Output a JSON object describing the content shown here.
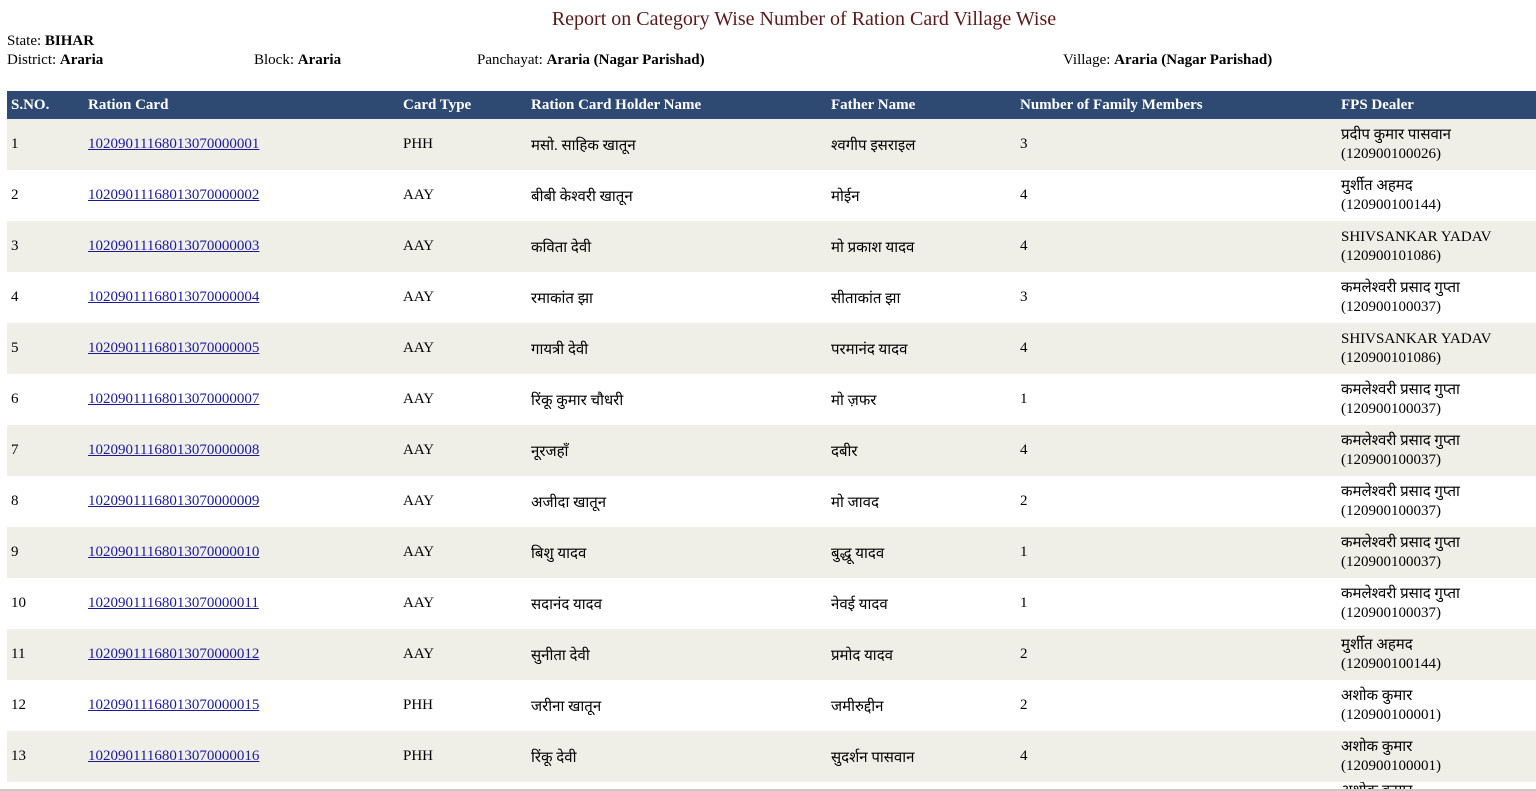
{
  "title": "Report on Category Wise Number of Ration Card Village Wise",
  "meta": {
    "state_label": "State:",
    "state_value": "BIHAR",
    "district_label": "District:",
    "district_value": "Araria",
    "block_label": "Block:",
    "block_value": "Araria",
    "panchayat_label": "Panchayat:",
    "panchayat_value": "Araria (Nagar Parishad)",
    "village_label": "Village:",
    "village_value": "Araria (Nagar Parishad)"
  },
  "table": {
    "headers": [
      "S.NO.",
      "Ration Card",
      "Card Type",
      "Ration Card Holder Name",
      "Father Name",
      "Number of Family Members",
      "FPS Dealer"
    ],
    "rows": [
      {
        "sno": "1",
        "card": "10209011168013070000001",
        "type": "PHH",
        "holder": "मसो. साहिक खातून",
        "father": "श्वगीप इसराइल",
        "members": "3",
        "fps_name": "प्रदीप कुमार पासवान",
        "fps_code": "(120900100026)"
      },
      {
        "sno": "2",
        "card": "10209011168013070000002",
        "type": "AAY",
        "holder": "बीबी केश्वरी खातून",
        "father": "मोईन",
        "members": "4",
        "fps_name": "मुर्शीत अहमद",
        "fps_code": "(120900100144)"
      },
      {
        "sno": "3",
        "card": "10209011168013070000003",
        "type": "AAY",
        "holder": "कविता देवी",
        "father": "मो प्रकाश यादव",
        "members": "4",
        "fps_name": "SHIVSANKAR YADAV",
        "fps_code": "(120900101086)"
      },
      {
        "sno": "4",
        "card": "10209011168013070000004",
        "type": "AAY",
        "holder": "रमाकांत झा",
        "father": "सीताकांत झा",
        "members": "3",
        "fps_name": "कमलेश्वरी प्रसाद गुप्ता",
        "fps_code": "(120900100037)"
      },
      {
        "sno": "5",
        "card": "10209011168013070000005",
        "type": "AAY",
        "holder": "गायत्री देवी",
        "father": "परमानंद यादव",
        "members": "4",
        "fps_name": "SHIVSANKAR YADAV",
        "fps_code": "(120900101086)"
      },
      {
        "sno": "6",
        "card": "10209011168013070000007",
        "type": "AAY",
        "holder": "रिंकू कुमार चौधरी",
        "father": "मो ज़फर",
        "members": "1",
        "fps_name": "कमलेश्वरी प्रसाद गुप्ता",
        "fps_code": "(120900100037)"
      },
      {
        "sno": "7",
        "card": "10209011168013070000008",
        "type": "AAY",
        "holder": "नूरजहाँ",
        "father": "दबीर",
        "members": "4",
        "fps_name": "कमलेश्वरी प्रसाद गुप्ता",
        "fps_code": "(120900100037)"
      },
      {
        "sno": "8",
        "card": "10209011168013070000009",
        "type": "AAY",
        "holder": "अजीदा खातून",
        "father": "मो जावद",
        "members": "2",
        "fps_name": "कमलेश्वरी प्रसाद गुप्ता",
        "fps_code": "(120900100037)"
      },
      {
        "sno": "9",
        "card": "10209011168013070000010",
        "type": "AAY",
        "holder": "बिशु यादव",
        "father": "बुद्धू यादव",
        "members": "1",
        "fps_name": "कमलेश्वरी प्रसाद गुप्ता",
        "fps_code": "(120900100037)"
      },
      {
        "sno": "10",
        "card": "10209011168013070000011",
        "type": "AAY",
        "holder": "सदानंद यादव",
        "father": "नेवई यादव",
        "members": "1",
        "fps_name": "कमलेश्वरी प्रसाद गुप्ता",
        "fps_code": "(120900100037)"
      },
      {
        "sno": "11",
        "card": "10209011168013070000012",
        "type": "AAY",
        "holder": "सुनीता देवी",
        "father": "प्रमोद यादव",
        "members": "2",
        "fps_name": "मुर्शीत अहमद",
        "fps_code": "(120900100144)"
      },
      {
        "sno": "12",
        "card": "10209011168013070000015",
        "type": "PHH",
        "holder": "जरीना खातून",
        "father": "जमीरुद्दीन",
        "members": "2",
        "fps_name": "अशोक कुमार",
        "fps_code": "(120900100001)"
      },
      {
        "sno": "13",
        "card": "10209011168013070000016",
        "type": "PHH",
        "holder": "रिंकू देवी",
        "father": "सुदर्शन पासवान",
        "members": "4",
        "fps_name": "अशोक कुमार",
        "fps_code": "(120900100001)"
      }
    ],
    "partial_row_fps": "अशोक कुमार"
  },
  "colors": {
    "header_bg": "#2e4a73",
    "title_color": "#5a1a1a",
    "row_alt_bg": "#efeee7",
    "link_color": "#1a1a9c"
  }
}
